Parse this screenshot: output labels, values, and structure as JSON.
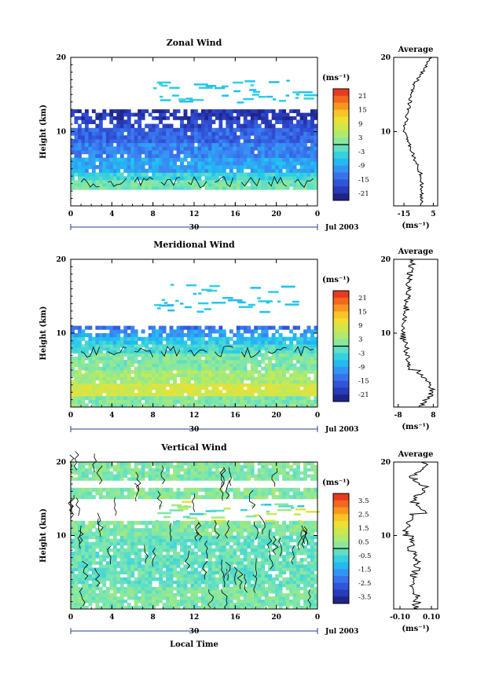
{
  "chart_data": [
    {
      "type": "heatmap",
      "title": "Zonal Wind",
      "xlabel": "",
      "ylabel": "Height (km)",
      "x_ticks": [
        "0",
        "4",
        "8",
        "12",
        "16",
        "20",
        "0"
      ],
      "y_ticks": [
        "10",
        "20"
      ],
      "date_axis": {
        "day": "30",
        "month_label": "Jul 2003"
      },
      "colorbar": {
        "unit": "(ms⁻¹)",
        "labels": [
          "21",
          "15",
          "9",
          "3",
          "-3",
          "-9",
          "-15",
          "-21"
        ],
        "range": [
          -24,
          24
        ]
      },
      "bands": [
        {
          "h0": 2.2,
          "h1": 3.5,
          "value": 0
        },
        {
          "h0": 3.5,
          "h1": 4.5,
          "value": -4
        },
        {
          "h0": 4.5,
          "h1": 6.5,
          "value": -9
        },
        {
          "h0": 6.5,
          "h1": 8.5,
          "value": -12
        },
        {
          "h0": 8.5,
          "h1": 10.5,
          "value": -15
        },
        {
          "h0": 10.5,
          "h1": 11.6,
          "value": -18
        },
        {
          "h0": 11.6,
          "h1": 13,
          "value": -20
        }
      ],
      "sparse_top": {
        "h0": 14,
        "h1": 17,
        "value": -6
      },
      "average": {
        "title": "Average",
        "xlabel": "(ms⁻¹)",
        "x_ticks": [
          "-15",
          "5"
        ],
        "xlim": [
          -22,
          8
        ],
        "y_ticks": [
          "10",
          "20"
        ]
      }
    },
    {
      "type": "heatmap",
      "title": "Meridional Wind",
      "xlabel": "",
      "ylabel": "Height (km)",
      "x_ticks": [
        "0",
        "4",
        "8",
        "12",
        "16",
        "20",
        "0"
      ],
      "y_ticks": [
        "10",
        "20"
      ],
      "date_axis": {
        "day": "30",
        "month_label": "Jul 2003"
      },
      "colorbar": {
        "unit": "(ms⁻¹)",
        "labels": [
          "21",
          "15",
          "9",
          "3",
          "-3",
          "-9",
          "-15",
          "-21"
        ],
        "range": [
          -24,
          24
        ]
      },
      "bands": [
        {
          "h0": 0,
          "h1": 1.5,
          "value": 1
        },
        {
          "h0": 1.5,
          "h1": 3.2,
          "value": 8
        },
        {
          "h0": 3.2,
          "h1": 5,
          "value": 4
        },
        {
          "h0": 5,
          "h1": 7.3,
          "value": 1
        },
        {
          "h0": 7.3,
          "h1": 8.5,
          "value": -3
        },
        {
          "h0": 8.5,
          "h1": 9.5,
          "value": -6
        },
        {
          "h0": 9.5,
          "h1": 10.5,
          "value": -10
        },
        {
          "h0": 10.5,
          "h1": 11,
          "value": -14
        }
      ],
      "sparse_top": {
        "h0": 13,
        "h1": 17,
        "value": -6
      },
      "average": {
        "title": "Average",
        "xlabel": "(ms⁻¹)",
        "x_ticks": [
          "-8",
          "8"
        ],
        "xlim": [
          -10,
          10
        ],
        "y_ticks": [
          "10",
          "20"
        ]
      }
    },
    {
      "type": "heatmap",
      "title": "Vertical Wind",
      "xlabel": "Local Time",
      "ylabel": "Height (km)",
      "x_ticks": [
        "0",
        "4",
        "8",
        "12",
        "16",
        "20",
        "0"
      ],
      "y_ticks": [
        "10",
        "20"
      ],
      "date_axis": {
        "day": "30",
        "month_label": "Jul 2003"
      },
      "colorbar": {
        "unit": "(ms⁻¹)",
        "labels": [
          "3.5",
          "2.5",
          "1.5",
          "0.5",
          "-0.5",
          "-1.5",
          "-2.5",
          "-3.5"
        ],
        "range": [
          -4,
          4
        ]
      },
      "bands": [
        {
          "h0": 0,
          "h1": 3,
          "value": 0.1
        },
        {
          "h0": 3,
          "h1": 10,
          "value": -0.15
        },
        {
          "h0": 10,
          "h1": 12,
          "value": 0.2
        },
        {
          "h0": 15,
          "h1": 16.5,
          "value": 0.2
        },
        {
          "h0": 17.5,
          "h1": 20,
          "value": 0.15
        }
      ],
      "sparse_top": {
        "h0": 12,
        "h1": 15,
        "value": 0.2
      },
      "average": {
        "title": "Average",
        "xlabel": "(ms⁻¹)",
        "x_ticks": [
          "-0.10",
          "0.10"
        ],
        "xlim": [
          -0.14,
          0.14
        ],
        "y_ticks": [
          "10",
          "20"
        ]
      }
    }
  ]
}
